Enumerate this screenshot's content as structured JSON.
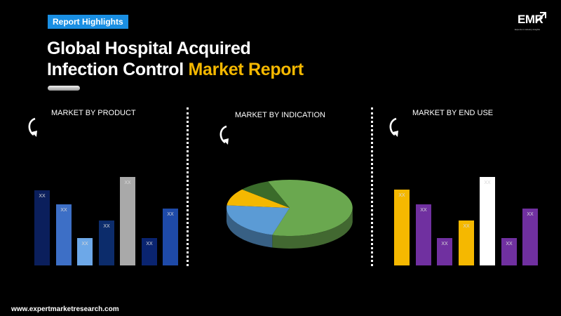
{
  "header": {
    "badge": "Report Highlights",
    "title_line1": "Global Hospital Acquired",
    "title_line2_plain": "Infection Control ",
    "title_line2_accent": "Market Report"
  },
  "logo": {
    "text": "EMR",
    "tagline": "Experts in Industry Insights"
  },
  "footer": {
    "url": "www.expertmarketresearch.com"
  },
  "colors": {
    "accent_yellow": "#f5b800",
    "badge_blue": "#1a8fe3"
  },
  "chart_data": [
    {
      "type": "bar",
      "title": "MARKET BY PRODUCT",
      "data_labels": [
        "XX",
        "XX",
        "XX",
        "XX",
        "XX",
        "XX",
        "XX"
      ],
      "values": [
        85,
        69,
        31,
        51,
        100,
        31,
        64
      ],
      "colors": [
        "#0b1f5c",
        "#3d6fc6",
        "#6da8e8",
        "#0c2c6b",
        "#a9a9a9",
        "#0a2470",
        "#1e4aa8"
      ],
      "ylim": [
        0,
        100
      ]
    },
    {
      "type": "pie",
      "title": "MARKET BY INDICATION",
      "values": [
        60,
        22,
        10,
        8
      ],
      "colors": [
        "#6aa84f",
        "#5b9bd5",
        "#f5b800",
        "#3a6b2a"
      ]
    },
    {
      "type": "bar",
      "title": "MARKET BY END USE",
      "data_labels": [
        "XX",
        "XX",
        "XX",
        "XX",
        "XX",
        "XX",
        "XX"
      ],
      "values": [
        86,
        69,
        31,
        51,
        100,
        31,
        64
      ],
      "colors": [
        "#f5b800",
        "#7030a0",
        "#7030a0",
        "#f5b800",
        "#ffffff",
        "#7030a0",
        "#7030a0"
      ],
      "ylim": [
        0,
        100
      ]
    }
  ]
}
